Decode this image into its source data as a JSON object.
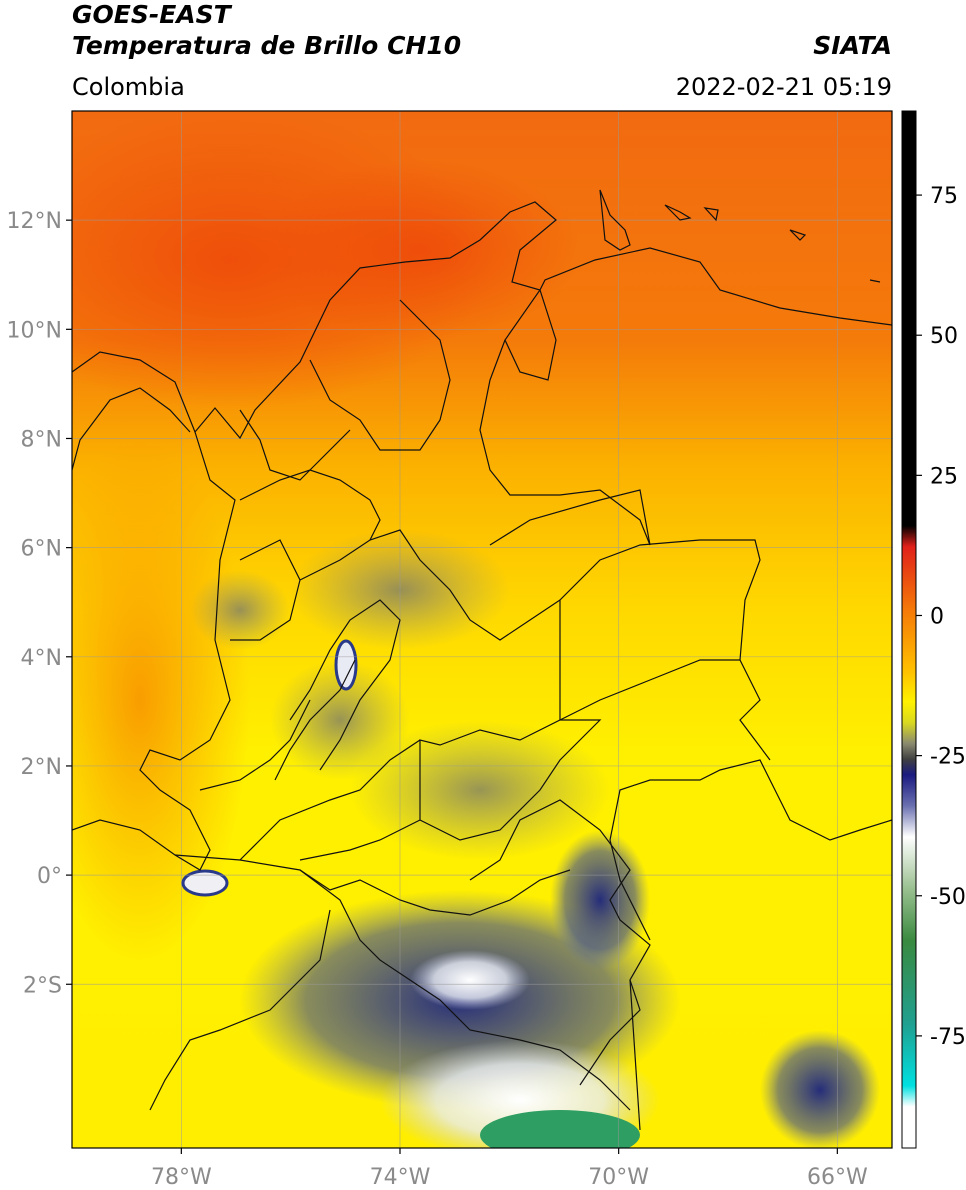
{
  "header": {
    "satellite": "GOES-EAST",
    "product": "Temperatura de Brillo CH10",
    "region": "Colombia",
    "agency": "SIATA",
    "timestamp": "2022-02-21 05:19"
  },
  "map": {
    "lon_range": [
      -80,
      -65
    ],
    "lat_range": [
      -5,
      14
    ],
    "lat_ticks": [
      {
        "value": 12,
        "label": "12°N"
      },
      {
        "value": 10,
        "label": "10°N"
      },
      {
        "value": 8,
        "label": "8°N"
      },
      {
        "value": 6,
        "label": "6°N"
      },
      {
        "value": 4,
        "label": "4°N"
      },
      {
        "value": 2,
        "label": "2°N"
      },
      {
        "value": 0,
        "label": "0°"
      },
      {
        "value": -2,
        "label": "2°S"
      }
    ],
    "lon_ticks": [
      {
        "value": -78,
        "label": "78°W"
      },
      {
        "value": -74,
        "label": "74°W"
      },
      {
        "value": -70,
        "label": "70°W"
      },
      {
        "value": -66,
        "label": "66°W"
      }
    ],
    "grid": true,
    "colors": {
      "hot": "#f05a0a",
      "warm": "#f89a00",
      "mild": "#ffd400",
      "cool": "#fff200",
      "gray": "#8c8c6e",
      "navy": "#1c2a80",
      "white": "#ffffff",
      "green": "#2e9e62"
    }
  },
  "colorbar": {
    "range": [
      -95,
      90
    ],
    "ticks": [
      {
        "value": 75,
        "label": "75"
      },
      {
        "value": 50,
        "label": "50"
      },
      {
        "value": 25,
        "label": "25"
      },
      {
        "value": 0,
        "label": "0"
      },
      {
        "value": -25,
        "label": "-25"
      },
      {
        "value": -50,
        "label": "-50"
      },
      {
        "value": -75,
        "label": "-75"
      }
    ]
  }
}
